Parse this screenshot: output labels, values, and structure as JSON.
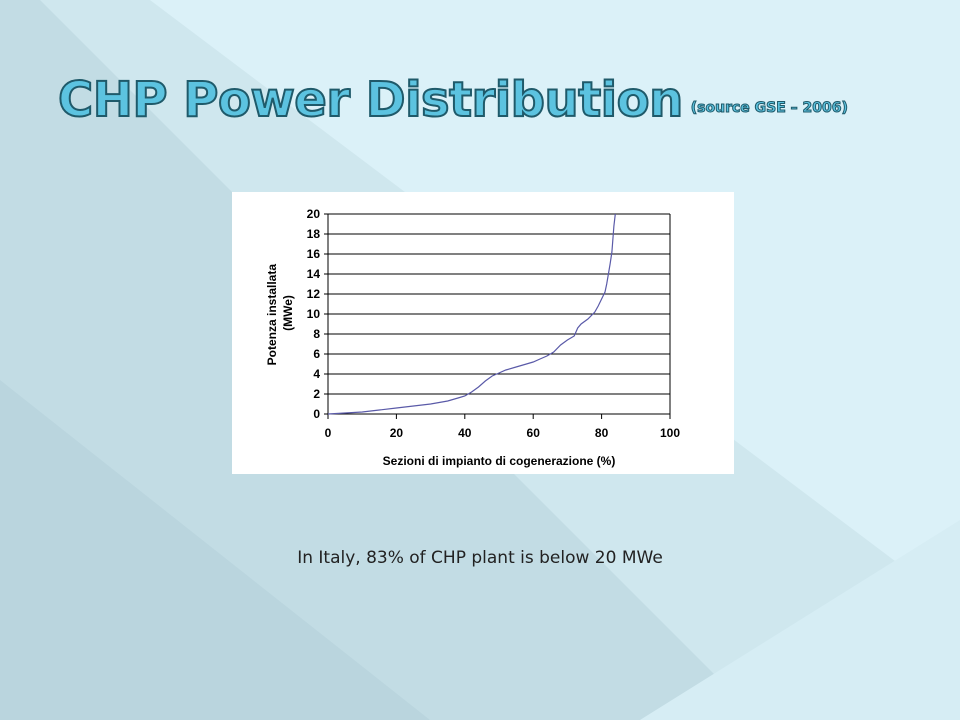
{
  "slide": {
    "title": "CHP Power Distribution",
    "subtitle": "(source GSE – 2006)",
    "caption": "In Italy, 83% of CHP plant is below 20 MWe"
  },
  "colors": {
    "background": "#dbf1f8",
    "title_fill": "#5cc3e0",
    "title_outline": "#1f5a6a",
    "series_line": "#5a5aa8",
    "gridline": "#000000"
  },
  "chart_data": {
    "type": "line",
    "xlabel": "Sezioni di impianto di cogenerazione (%)",
    "ylabel": "Potenza installata (MWe)",
    "ylabel_lines": [
      "Potenza installata",
      "(MWe)"
    ],
    "xlim": [
      0,
      100
    ],
    "ylim": [
      0,
      20
    ],
    "xticks": [
      0,
      20,
      40,
      60,
      80,
      100
    ],
    "yticks": [
      0,
      2,
      4,
      6,
      8,
      10,
      12,
      14,
      16,
      18,
      20
    ],
    "grid": "horizontal",
    "legend": "none",
    "series": [
      {
        "x": [
          0,
          5,
          10,
          15,
          20,
          25,
          30,
          35,
          38,
          40,
          42,
          44,
          46,
          48,
          50,
          52,
          55,
          58,
          60,
          62,
          64,
          66,
          68,
          70,
          72,
          73,
          74,
          76,
          78,
          79,
          80,
          81,
          81.5,
          82,
          82.5,
          83,
          83.3,
          83.6,
          84
        ],
        "y": [
          0,
          0.1,
          0.2,
          0.4,
          0.6,
          0.8,
          1.0,
          1.3,
          1.6,
          1.8,
          2.2,
          2.7,
          3.3,
          3.8,
          4.1,
          4.4,
          4.7,
          5.0,
          5.2,
          5.5,
          5.8,
          6.2,
          6.9,
          7.4,
          7.8,
          8.6,
          9.0,
          9.5,
          10.2,
          10.8,
          11.5,
          12.2,
          13.0,
          14.0,
          15.0,
          16.2,
          17.5,
          18.8,
          20
        ]
      }
    ]
  }
}
